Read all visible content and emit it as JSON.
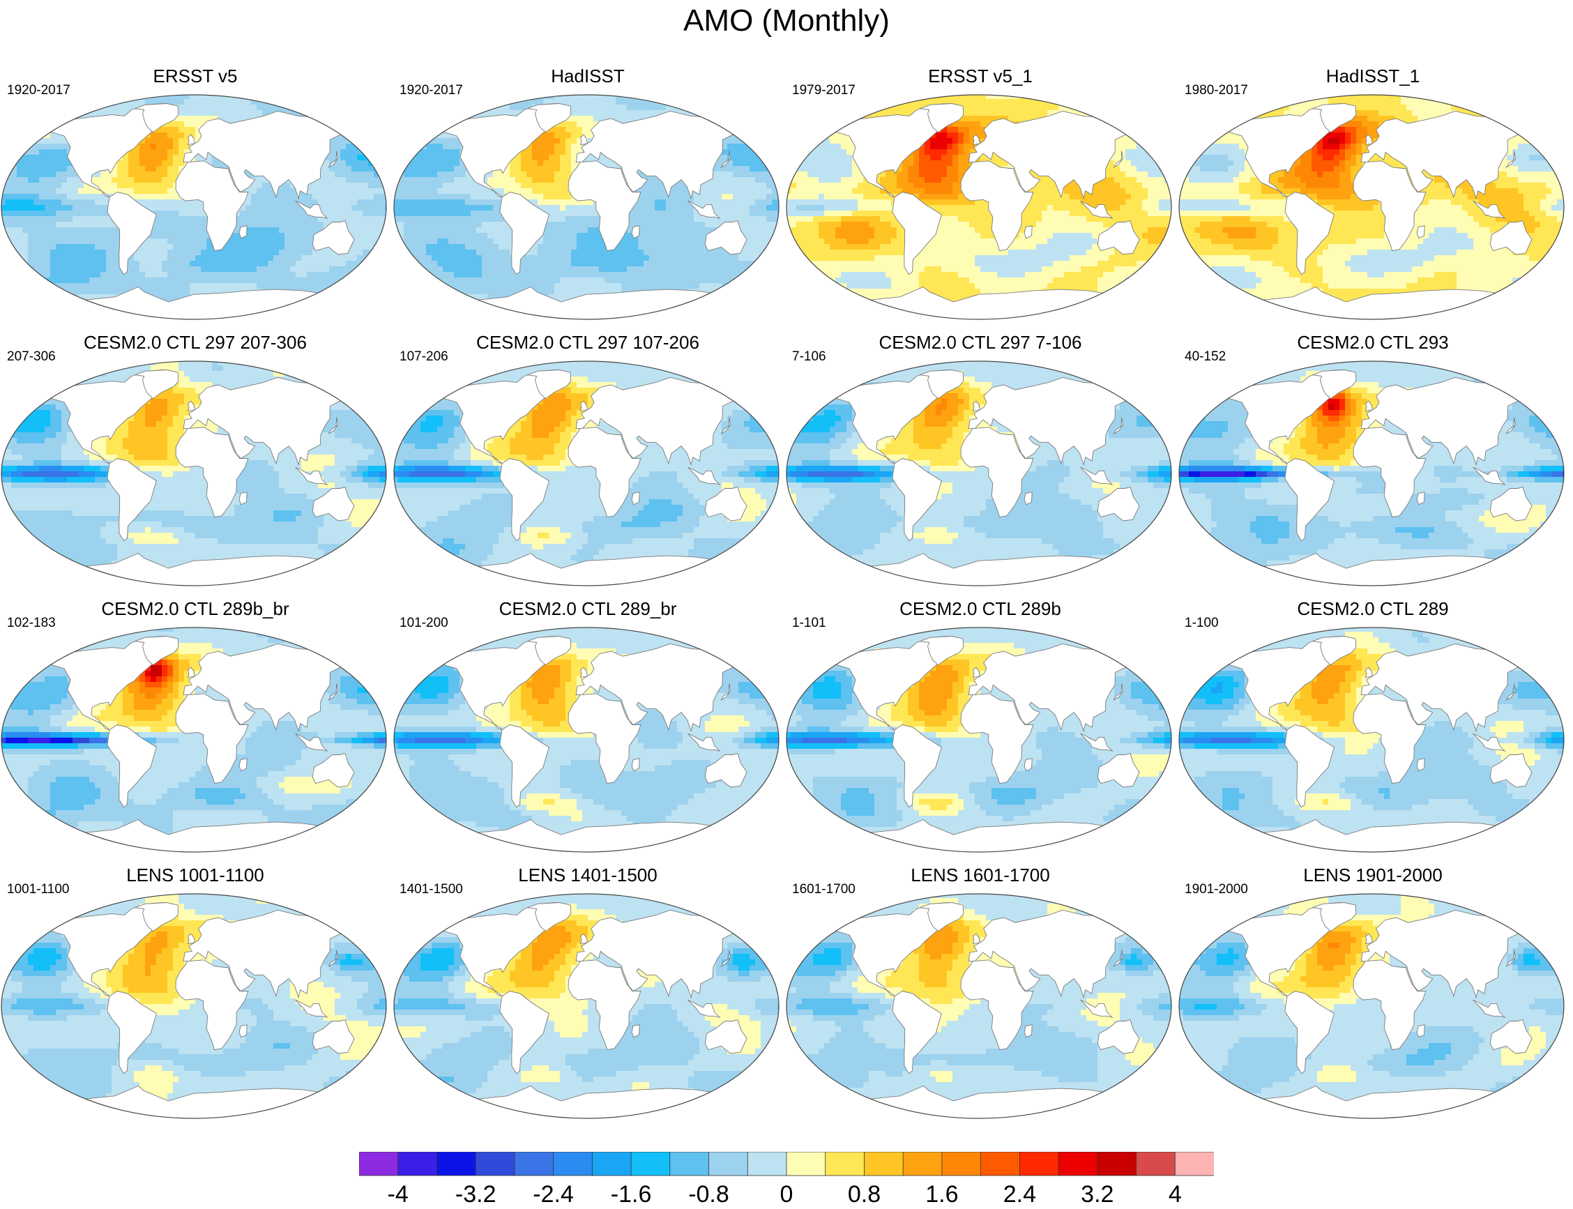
{
  "title": "AMO (Monthly)",
  "palette": {
    "land": "#ffffff",
    "coast": "#7a7a7a",
    "border": "#444444"
  },
  "panels": [
    {
      "title": "ERSST v5",
      "period": "1920-2017",
      "style": "obs"
    },
    {
      "title": "HadISST",
      "period": "1920-2017",
      "style": "obs"
    },
    {
      "title": "ERSST v5_1",
      "period": "1979-2017",
      "style": "obs_warm"
    },
    {
      "title": "HadISST_1",
      "period": "1980-2017",
      "style": "obs_warm"
    },
    {
      "title": "CESM2.0 CTL 297 207-306",
      "period": "207-306",
      "style": "model"
    },
    {
      "title": "CESM2.0 CTL 297 107-206",
      "period": "107-206",
      "style": "model"
    },
    {
      "title": "CESM2.0 CTL 297 7-106",
      "period": "7-106",
      "style": "model"
    },
    {
      "title": "CESM2.0 CTL 293",
      "period": "40-152",
      "style": "model_strong"
    },
    {
      "title": "CESM2.0 CTL 289b_br",
      "period": "102-183",
      "style": "model_strong"
    },
    {
      "title": "CESM2.0 CTL 289_br",
      "period": "101-200",
      "style": "model"
    },
    {
      "title": "CESM2.0 CTL 289b",
      "period": "1-101",
      "style": "model"
    },
    {
      "title": "CESM2.0 CTL 289",
      "period": "1-100",
      "style": "model"
    },
    {
      "title": "LENS 1001-1100",
      "period": "1001-1100",
      "style": "lens"
    },
    {
      "title": "LENS 1401-1500",
      "period": "1401-1500",
      "style": "lens"
    },
    {
      "title": "LENS 1601-1700",
      "period": "1601-1700",
      "style": "lens"
    },
    {
      "title": "LENS 1901-2000",
      "period": "1901-2000",
      "style": "lens"
    }
  ],
  "chart_data": {
    "type": "heatmap",
    "title": "AMO (Monthly)",
    "projection": "Robinson (global)",
    "colorbar": {
      "levels": [
        -4,
        -3.6,
        -3.2,
        -2.8,
        -2.4,
        -2.0,
        -1.6,
        -1.2,
        -0.8,
        -0.4,
        0,
        0.4,
        0.8,
        1.2,
        1.6,
        2.0,
        2.4,
        2.8,
        3.2,
        3.6,
        4
      ],
      "colors": [
        "#8c2be2",
        "#3b1ee8",
        "#0b14e8",
        "#2f4bdc",
        "#3a74e6",
        "#2a8cf0",
        "#1aa5f5",
        "#12bff8",
        "#5ec1ef",
        "#9dd2ee",
        "#bde2f2",
        "#fffcb4",
        "#ffe655",
        "#ffc524",
        "#ffa20f",
        "#ff8706",
        "#ff5a00",
        "#ff2a00",
        "#ec0000",
        "#c80000",
        "#d94a4a",
        "#ffb4b4"
      ],
      "tick_labels": [
        "-4",
        "-3.2",
        "-2.4",
        "-1.6",
        "-0.8",
        "0",
        "0.8",
        "1.6",
        "2.4",
        "3.2",
        "4"
      ]
    }
  }
}
